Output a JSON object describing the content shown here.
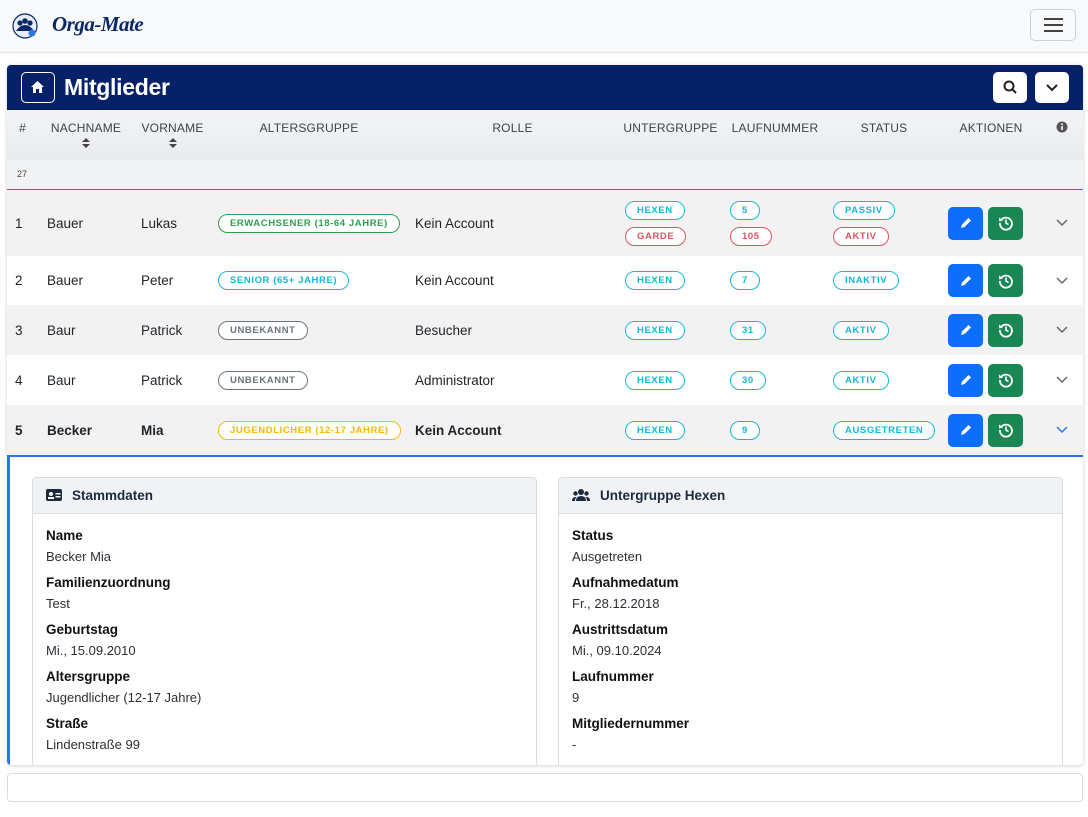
{
  "brand": "Orga-Mate",
  "header": {
    "title": "Mitglieder"
  },
  "table": {
    "columns": [
      "#",
      "NACHNAME",
      "VORNAME",
      "ALTERSGRUPPE",
      "ROLLE",
      "UNTERGRUPPE",
      "LAUFNUMMER",
      "STATUS",
      "AKTIONEN"
    ],
    "count": "27",
    "rows": [
      {
        "index": "1",
        "nachname": "Bauer",
        "vorname": "Lukas",
        "altersgruppe": {
          "label": "ERWACHSENER (18-64 JAHRE)",
          "color": "#2e9e4f"
        },
        "rolle": "Kein Account",
        "untergruppen": [
          {
            "label": "HEXEN",
            "color": "#13b8d6"
          },
          {
            "label": "GARDE",
            "color": "#e0525f"
          }
        ],
        "laufnummern": [
          {
            "label": "5",
            "color": "#13b8d6"
          },
          {
            "label": "105",
            "color": "#e0525f"
          }
        ],
        "status": [
          {
            "label": "PASSIV",
            "color": "#13b8d6"
          },
          {
            "label": "AKTIV",
            "color": "#e0525f"
          }
        ]
      },
      {
        "index": "2",
        "nachname": "Bauer",
        "vorname": "Peter",
        "altersgruppe": {
          "label": "SENIOR (65+ JAHRE)",
          "color": "#13b8d6"
        },
        "rolle": "Kein Account",
        "untergruppen": [
          {
            "label": "HEXEN",
            "color": "#13b8d6"
          }
        ],
        "laufnummern": [
          {
            "label": "7",
            "color": "#13b8d6"
          }
        ],
        "status": [
          {
            "label": "INAKTIV",
            "color": "#13b8d6"
          }
        ]
      },
      {
        "index": "3",
        "nachname": "Baur",
        "vorname": "Patrick",
        "altersgruppe": {
          "label": "UNBEKANNT",
          "color": "#6c757d"
        },
        "rolle": "Besucher",
        "untergruppen": [
          {
            "label": "HEXEN",
            "color": "#13b8d6"
          }
        ],
        "laufnummern": [
          {
            "label": "31",
            "color": "#13b8d6"
          }
        ],
        "status": [
          {
            "label": "AKTIV",
            "color": "#13b8d6"
          }
        ]
      },
      {
        "index": "4",
        "nachname": "Baur",
        "vorname": "Patrick",
        "altersgruppe": {
          "label": "UNBEKANNT",
          "color": "#6c757d"
        },
        "rolle": "Administrator",
        "untergruppen": [
          {
            "label": "HEXEN",
            "color": "#13b8d6"
          }
        ],
        "laufnummern": [
          {
            "label": "30",
            "color": "#13b8d6"
          }
        ],
        "status": [
          {
            "label": "AKTIV",
            "color": "#13b8d6"
          }
        ]
      },
      {
        "index": "5",
        "nachname": "Becker",
        "vorname": "Mia",
        "altersgruppe": {
          "label": "JUGENDLICHER (12-17 JAHRE)",
          "color": "#f5b800"
        },
        "rolle": "Kein Account",
        "untergruppen": [
          {
            "label": "HEXEN",
            "color": "#13b8d6"
          }
        ],
        "laufnummern": [
          {
            "label": "9",
            "color": "#13b8d6"
          }
        ],
        "status": [
          {
            "label": "AUSGETRETEN",
            "color": "#13b8d6"
          }
        ]
      }
    ]
  },
  "details": {
    "stammdaten": {
      "title": "Stammdaten",
      "fields": [
        {
          "label": "Name",
          "value": "Becker Mia"
        },
        {
          "label": "Familienzuordnung",
          "value": "Test"
        },
        {
          "label": "Geburtstag",
          "value": "Mi., 15.09.2010"
        },
        {
          "label": "Altersgruppe",
          "value": "Jugendlicher (12-17 Jahre)"
        },
        {
          "label": "Straße",
          "value": "Lindenstraße 99"
        }
      ]
    },
    "untergruppe": {
      "title": "Untergruppe Hexen",
      "fields": [
        {
          "label": "Status",
          "value": "Ausgetreten"
        },
        {
          "label": "Aufnahmedatum",
          "value": "Fr., 28.12.2018"
        },
        {
          "label": "Austrittsdatum",
          "value": "Mi., 09.10.2024"
        },
        {
          "label": "Laufnummer",
          "value": "9"
        },
        {
          "label": "Mitgliedernummer",
          "value": "-"
        }
      ]
    }
  }
}
